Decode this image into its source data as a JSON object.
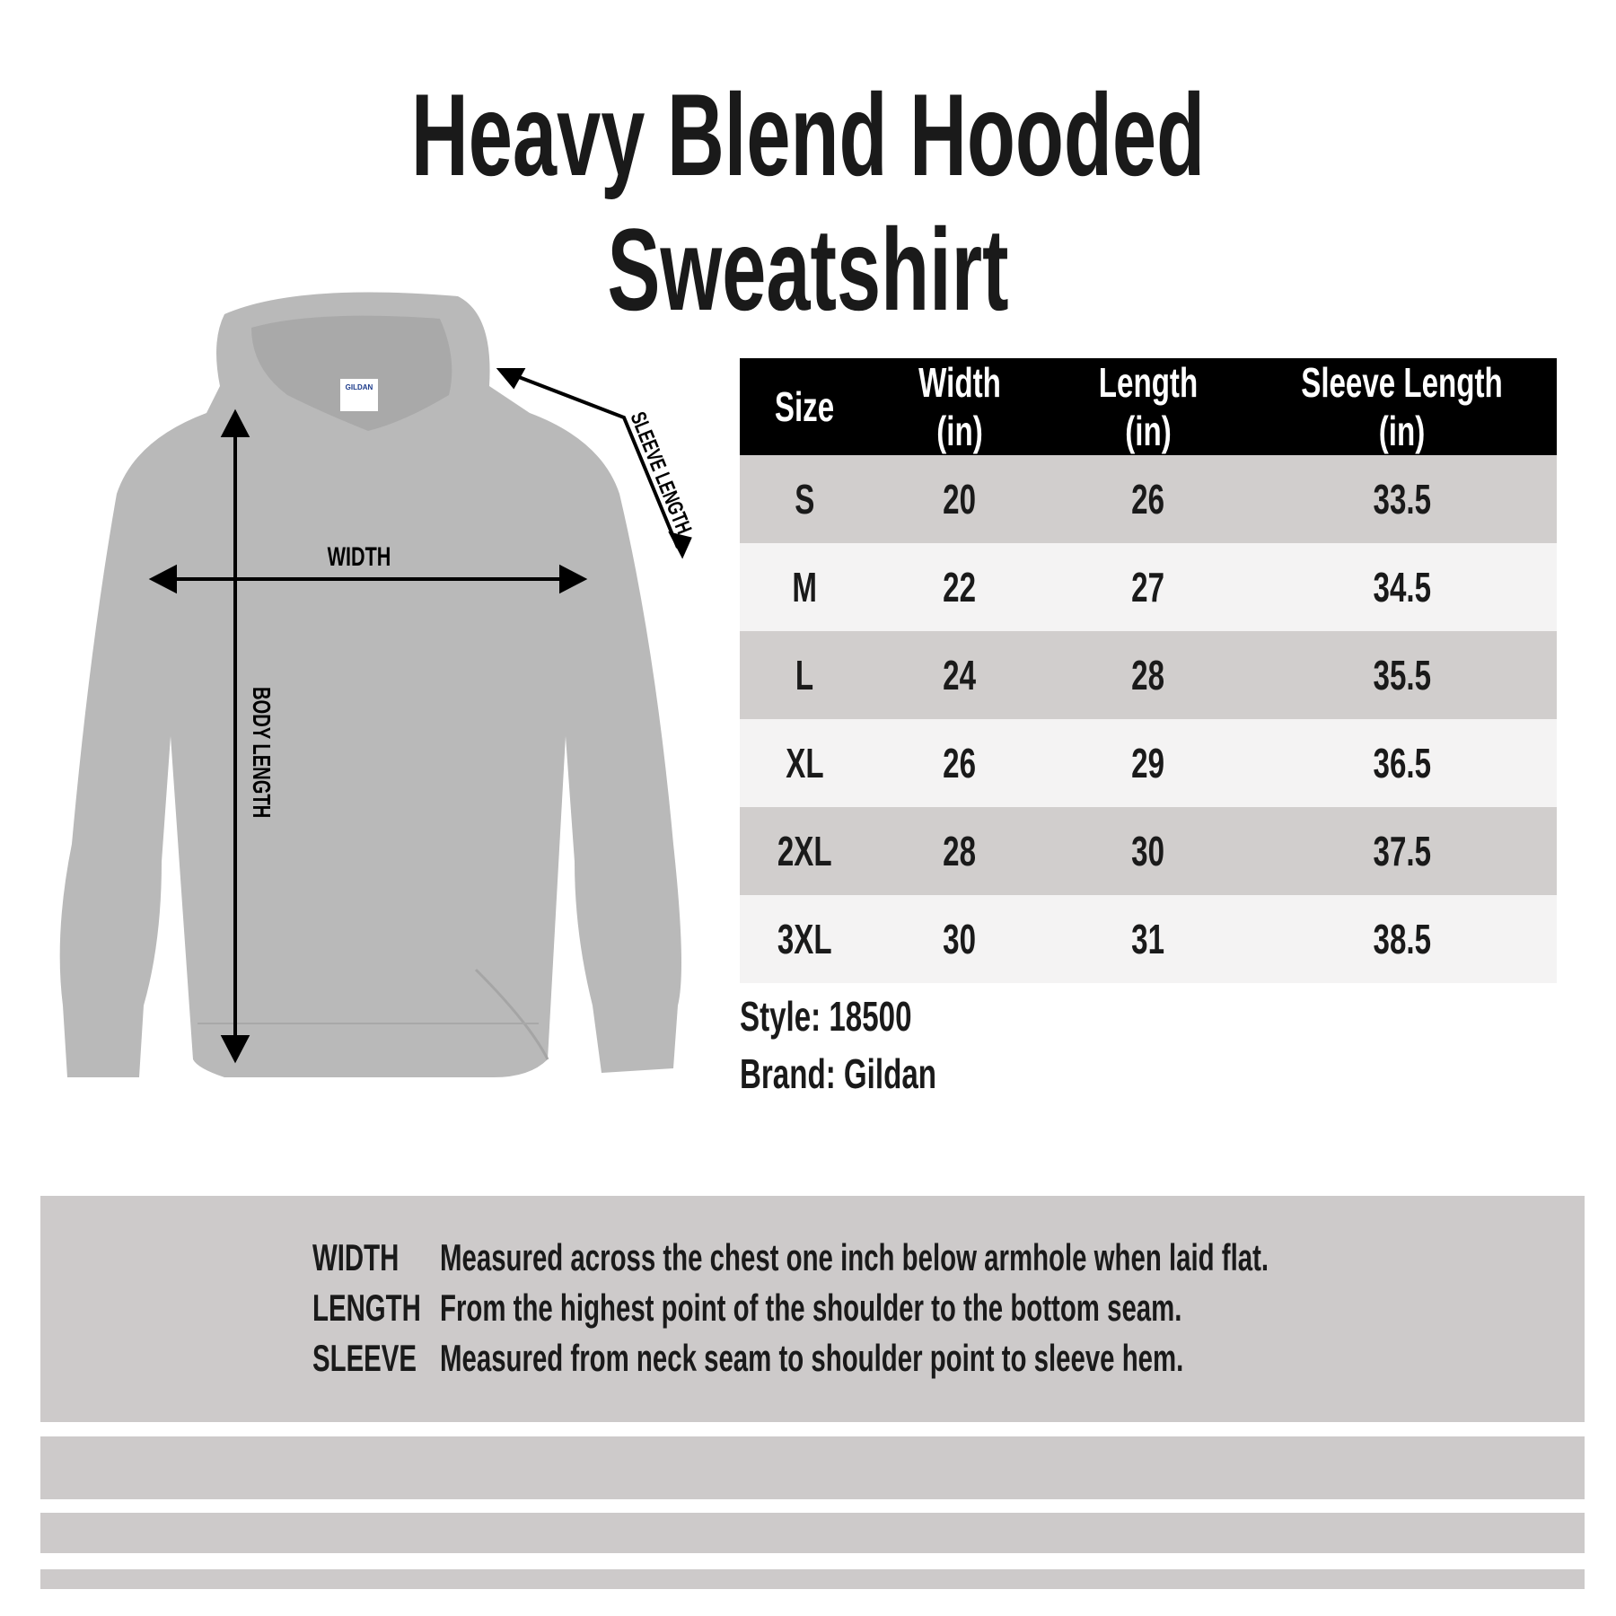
{
  "title": "Heavy Blend Hooded Sweatshirt",
  "diagram": {
    "labels": {
      "width": "WIDTH",
      "body_length": "BODY LENGTH",
      "sleeve_length": "SLEEVE LENGTH"
    },
    "tag_text": "GILDAN",
    "garment_color": "#b9b9b9"
  },
  "table": {
    "headers": [
      "Size",
      "Width (in)",
      "Length (in)",
      "Sleeve Length (in)"
    ],
    "rows": [
      [
        "S",
        "20",
        "26",
        "33.5"
      ],
      [
        "M",
        "22",
        "27",
        "34.5"
      ],
      [
        "L",
        "24",
        "28",
        "35.5"
      ],
      [
        "XL",
        "26",
        "29",
        "36.5"
      ],
      [
        "2XL",
        "28",
        "30",
        "37.5"
      ],
      [
        "3XL",
        "30",
        "31",
        "38.5"
      ]
    ]
  },
  "meta": {
    "style": "Style: 18500",
    "brand": "Brand: Gildan"
  },
  "definitions": [
    {
      "term": "WIDTH",
      "desc": "Measured across the chest one inch below armhole when laid flat."
    },
    {
      "term": "LENGTH",
      "desc": "From the highest point of the shoulder to the bottom seam."
    },
    {
      "term": "SLEEVE",
      "desc": "Measured from neck seam to shoulder point to sleeve hem."
    }
  ],
  "colors": {
    "header_bg": "#000000",
    "row_dark": "#d1cecd",
    "row_light": "#f4f3f3",
    "panel": "#cdcaca"
  }
}
